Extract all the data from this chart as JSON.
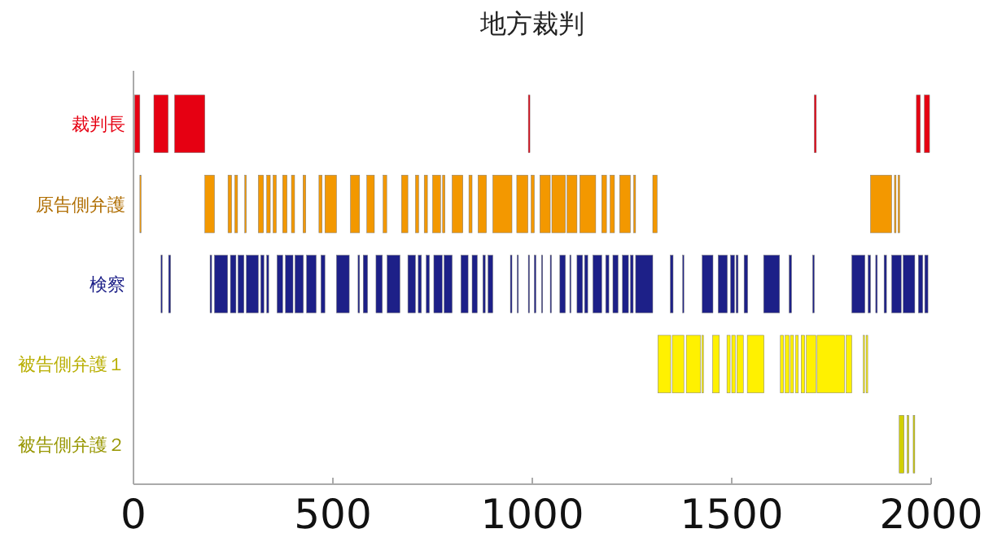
{
  "chart_data": {
    "type": "bar",
    "orientation": "horizontal",
    "title": "地方裁判",
    "categories": [
      "裁判長",
      "原告側弁護",
      "検察",
      "被告側弁護１",
      "被告側弁護２"
    ],
    "xlim": [
      0,
      2000
    ],
    "xticks": [
      0,
      500,
      1000,
      1500,
      2000
    ],
    "series": [
      {
        "colors": [
          "#e60012",
          "#f39800",
          "#1d2088",
          "#fff100",
          "#d2d000"
        ],
        "base": [
          3,
          16,
          69,
          1315,
          1920
        ],
        "values": [
          13,
          3,
          3,
          32,
          12
        ]
      },
      {
        "colors": [
          "#e60012",
          "#f39800",
          "#1d2088",
          "#fff100",
          "#d2d000"
        ],
        "base": [
          51,
          179,
          88,
          1351,
          1940
        ],
        "values": [
          36,
          24,
          5,
          29,
          4
        ]
      },
      {
        "colors": [
          "#e60012",
          "#f39800",
          "#1d2088",
          "#fff100",
          "#d2d000"
        ],
        "base": [
          103,
          237,
          192,
          1386,
          1955
        ],
        "values": [
          76,
          9,
          4,
          36,
          4
        ]
      },
      {
        "colors": [
          "#e60012",
          "#f39800",
          "#1d2088",
          "#fff100",
          null
        ],
        "base": [
          990,
          254,
          203,
          1425,
          null
        ],
        "values": [
          4,
          7,
          33,
          4,
          null
        ]
      },
      {
        "colors": [
          "#e60012",
          "#f39800",
          "#1d2088",
          "#fff100",
          null
        ],
        "base": [
          1707,
          279,
          243,
          1452,
          null
        ],
        "values": [
          5,
          4,
          14,
          17,
          null
        ]
      },
      {
        "colors": [
          "#e60012",
          "#f39800",
          "#1d2088",
          "#fff100",
          null
        ],
        "base": [
          1963,
          313,
          262,
          1488,
          null
        ],
        "values": [
          10,
          13,
          15,
          8,
          null
        ]
      },
      {
        "colors": [
          "#e60012",
          "#f39800",
          "#1d2088",
          "#fff100",
          null
        ],
        "base": [
          1983,
          334,
          283,
          1500,
          null
        ],
        "values": [
          13,
          9,
          30,
          9,
          null
        ]
      },
      {
        "colors": [
          null,
          "#f39800",
          "#1d2088",
          "#fff100",
          null
        ],
        "base": [
          null,
          350,
          319,
          1513,
          null
        ],
        "values": [
          null,
          8,
          8,
          16,
          null
        ]
      },
      {
        "colors": [
          null,
          "#f39800",
          "#1d2088",
          "#fff100",
          null
        ],
        "base": [
          null,
          374,
          334,
          1539,
          null
        ],
        "values": [
          null,
          11,
          5,
          42,
          null
        ]
      },
      {
        "colors": [
          null,
          "#f39800",
          "#1d2088",
          "#fff100",
          null
        ],
        "base": [
          null,
          396,
          360,
          1622,
          null
        ],
        "values": [
          null,
          8,
          14,
          8,
          null
        ]
      },
      {
        "colors": [
          null,
          "#f39800",
          "#1d2088",
          "#fff100",
          null
        ],
        "base": [
          null,
          425,
          381,
          1634,
          null
        ],
        "values": [
          null,
          7,
          19,
          10,
          null
        ]
      },
      {
        "colors": [
          null,
          "#f39800",
          "#1d2088",
          "#fff100",
          null
        ],
        "base": [
          null,
          465,
          405,
          1647,
          null
        ],
        "values": [
          null,
          8,
          21,
          8,
          null
        ]
      },
      {
        "colors": [
          null,
          "#f39800",
          "#1d2088",
          "#fff100",
          null
        ],
        "base": [
          null,
          480,
          434,
          1660,
          null
        ],
        "values": [
          null,
          29,
          24,
          7,
          null
        ]
      },
      {
        "colors": [
          null,
          "#f39800",
          "#1d2088",
          "#fff100",
          null
        ],
        "base": [
          null,
          544,
          470,
          1674,
          null
        ],
        "values": [
          null,
          23,
          10,
          9,
          null
        ]
      },
      {
        "colors": [
          null,
          "#f39800",
          "#1d2088",
          "#fff100",
          null
        ],
        "base": [
          null,
          585,
          509,
          1687,
          null
        ],
        "values": [
          null,
          19,
          32,
          24,
          null
        ]
      },
      {
        "colors": [
          null,
          "#f39800",
          "#1d2088",
          "#fff100",
          null
        ],
        "base": [
          null,
          626,
          563,
          1714,
          null
        ],
        "values": [
          null,
          9,
          4,
          69,
          null
        ]
      },
      {
        "colors": [
          null,
          "#f39800",
          "#1d2088",
          "#fff100",
          null
        ],
        "base": [
          null,
          672,
          576,
          1787,
          null
        ],
        "values": [
          null,
          16,
          11,
          14,
          null
        ]
      },
      {
        "colors": [
          null,
          "#f39800",
          "#1d2088",
          "#fff100",
          null
        ],
        "base": [
          null,
          707,
          608,
          1830,
          null
        ],
        "values": [
          null,
          8,
          16,
          3,
          null
        ]
      },
      {
        "colors": [
          null,
          "#f39800",
          "#1d2088",
          "#fff100",
          null
        ],
        "base": [
          null,
          729,
          636,
          1837,
          null
        ],
        "values": [
          null,
          8,
          32,
          4,
          null
        ]
      },
      {
        "colors": [
          null,
          "#f39800",
          "#1d2088",
          null,
          null
        ],
        "base": [
          null,
          750,
          688,
          null,
          null
        ],
        "values": [
          null,
          20,
          19,
          null,
          null
        ]
      },
      {
        "colors": [
          null,
          "#f39800",
          "#1d2088",
          null,
          null
        ],
        "base": [
          null,
          775,
          714,
          null,
          null
        ],
        "values": [
          null,
          6,
          8,
          null,
          null
        ]
      },
      {
        "colors": [
          null,
          "#f39800",
          "#1d2088",
          null,
          null
        ],
        "base": [
          null,
          799,
          734,
          null,
          null
        ],
        "values": [
          null,
          27,
          8,
          null,
          null
        ]
      },
      {
        "colors": [
          null,
          "#f39800",
          "#1d2088",
          null,
          null
        ],
        "base": [
          null,
          841,
          753,
          null,
          null
        ],
        "values": [
          null,
          8,
          21,
          null,
          null
        ]
      },
      {
        "colors": [
          null,
          "#f39800",
          "#1d2088",
          null,
          null
        ],
        "base": [
          null,
          864,
          779,
          null,
          null
        ],
        "values": [
          null,
          21,
          20,
          null,
          null
        ]
      },
      {
        "colors": [
          null,
          "#f39800",
          "#1d2088",
          null,
          null
        ],
        "base": [
          null,
          901,
          821,
          null,
          null
        ],
        "values": [
          null,
          48,
          18,
          null,
          null
        ]
      },
      {
        "colors": [
          null,
          "#f39800",
          "#1d2088",
          null,
          null
        ],
        "base": [
          null,
          961,
          849,
          null,
          null
        ],
        "values": [
          null,
          28,
          13,
          null,
          null
        ]
      },
      {
        "colors": [
          null,
          "#f39800",
          "#1d2088",
          null,
          null
        ],
        "base": [
          null,
          997,
          876,
          null,
          null
        ],
        "values": [
          null,
          8,
          6,
          null,
          null
        ]
      },
      {
        "colors": [
          null,
          "#f39800",
          "#1d2088",
          null,
          null
        ],
        "base": [
          null,
          1019,
          889,
          null,
          null
        ],
        "values": [
          null,
          26,
          12,
          null,
          null
        ]
      },
      {
        "colors": [
          null,
          "#f39800",
          "#1d2088",
          null,
          null
        ],
        "base": [
          null,
          1049,
          945,
          null,
          null
        ],
        "values": [
          null,
          34,
          4,
          null,
          null
        ]
      },
      {
        "colors": [
          null,
          "#f39800",
          "#1d2088",
          null,
          null
        ],
        "base": [
          null,
          1087,
          962,
          null,
          null
        ],
        "values": [
          null,
          25,
          3,
          null,
          null
        ]
      },
      {
        "colors": [
          null,
          "#f39800",
          "#1d2088",
          null,
          null
        ],
        "base": [
          null,
          1119,
          990,
          null,
          null
        ],
        "values": [
          null,
          40,
          3,
          null,
          null
        ]
      },
      {
        "colors": [
          null,
          "#f39800",
          "#1d2088",
          null,
          null
        ],
        "base": [
          null,
          1174,
          1005,
          null,
          null
        ],
        "values": [
          null,
          12,
          4,
          null,
          null
        ]
      },
      {
        "colors": [
          null,
          "#f39800",
          "#1d2088",
          null,
          null
        ],
        "base": [
          null,
          1195,
          1023,
          null,
          null
        ],
        "values": [
          null,
          11,
          3,
          null,
          null
        ]
      },
      {
        "colors": [
          null,
          "#f39800",
          "#1d2088",
          null,
          null
        ],
        "base": [
          null,
          1219,
          1045,
          null,
          null
        ],
        "values": [
          null,
          27,
          3,
          null,
          null
        ]
      },
      {
        "colors": [
          null,
          "#f39800",
          "#1d2088",
          null,
          null
        ],
        "base": [
          null,
          1254,
          1069,
          null,
          null
        ],
        "values": [
          null,
          5,
          14,
          null,
          null
        ]
      },
      {
        "colors": [
          null,
          "#f39800",
          "#1d2088",
          null,
          null
        ],
        "base": [
          null,
          1302,
          1094,
          null,
          null
        ],
        "values": [
          null,
          11,
          3,
          null,
          null
        ]
      },
      {
        "colors": [
          null,
          "#f39800",
          "#1d2088",
          null,
          null
        ],
        "base": [
          null,
          1848,
          1112,
          null,
          null
        ],
        "values": [
          null,
          53,
          14,
          null,
          null
        ]
      },
      {
        "colors": [
          null,
          "#f39800",
          "#1d2088",
          null,
          null
        ],
        "base": [
          null,
          1908,
          1131,
          null,
          null
        ],
        "values": [
          null,
          4,
          8,
          null,
          null
        ]
      },
      {
        "colors": [
          null,
          "#f39800",
          "#1d2088",
          null,
          null
        ],
        "base": [
          null,
          1917,
          1152,
          null,
          null
        ],
        "values": [
          null,
          4,
          22,
          null,
          null
        ]
      },
      {
        "color": "#1d2088",
        "base": [
          null,
          null,
          1184,
          null,
          null
        ],
        "values": [
          null,
          null,
          8,
          null,
          null
        ]
      },
      {
        "color": "#1d2088",
        "base": [
          null,
          null,
          1202,
          null,
          null
        ],
        "values": [
          null,
          null,
          13,
          null,
          null
        ]
      },
      {
        "color": "#1d2088",
        "base": [
          null,
          null,
          1226,
          null,
          null
        ],
        "values": [
          null,
          null,
          15,
          null,
          null
        ]
      },
      {
        "color": "#1d2088",
        "base": [
          null,
          null,
          1246,
          null,
          null
        ],
        "values": [
          null,
          null,
          7,
          null,
          null
        ]
      },
      {
        "color": "#1d2088",
        "base": [
          null,
          null,
          1259,
          null,
          null
        ],
        "values": [
          null,
          null,
          43,
          null,
          null
        ]
      },
      {
        "color": "#1d2088",
        "base": [
          null,
          null,
          1346,
          null,
          null
        ],
        "values": [
          null,
          null,
          7,
          null,
          null
        ]
      },
      {
        "color": "#1d2088",
        "base": [
          null,
          null,
          1377,
          null,
          null
        ],
        "values": [
          null,
          null,
          3,
          null,
          null
        ]
      },
      {
        "color": "#1d2088",
        "base": [
          null,
          null,
          1426,
          null,
          null
        ],
        "values": [
          null,
          null,
          27,
          null,
          null
        ]
      },
      {
        "color": "#1d2088",
        "base": [
          null,
          null,
          1466,
          null,
          null
        ],
        "values": [
          null,
          null,
          23,
          null,
          null
        ]
      },
      {
        "color": "#1d2088",
        "base": [
          null,
          null,
          1497,
          null,
          null
        ],
        "values": [
          null,
          null,
          10,
          null,
          null
        ]
      },
      {
        "color": "#1d2088",
        "base": [
          null,
          null,
          1511,
          null,
          null
        ],
        "values": [
          null,
          null,
          5,
          null,
          null
        ]
      },
      {
        "color": "#1d2088",
        "base": [
          null,
          null,
          1531,
          null,
          null
        ],
        "values": [
          null,
          null,
          9,
          null,
          null
        ]
      },
      {
        "color": "#1d2088",
        "base": [
          null,
          null,
          1580,
          null,
          null
        ],
        "values": [
          null,
          null,
          40,
          null,
          null
        ]
      },
      {
        "color": "#1d2088",
        "base": [
          null,
          null,
          1644,
          null,
          null
        ],
        "values": [
          null,
          null,
          6,
          null,
          null
        ]
      },
      {
        "color": "#1d2088",
        "base": [
          null,
          null,
          1703,
          null,
          null
        ],
        "values": [
          null,
          null,
          4,
          null,
          null
        ]
      },
      {
        "color": "#1d2088",
        "base": [
          null,
          null,
          1801,
          null,
          null
        ],
        "values": [
          null,
          null,
          33,
          null,
          null
        ]
      },
      {
        "color": "#1d2088",
        "base": [
          null,
          null,
          1842,
          null,
          null
        ],
        "values": [
          null,
          null,
          6,
          null,
          null
        ]
      },
      {
        "color": "#1d2088",
        "base": [
          null,
          null,
          1861,
          null,
          null
        ],
        "values": [
          null,
          null,
          4,
          null,
          null
        ]
      },
      {
        "color": "#1d2088",
        "base": [
          null,
          null,
          1882,
          null,
          null
        ],
        "values": [
          null,
          null,
          6,
          null,
          null
        ]
      },
      {
        "color": "#1d2088",
        "base": [
          null,
          null,
          1901,
          null,
          null
        ],
        "values": [
          null,
          null,
          24,
          null,
          null
        ]
      },
      {
        "color": "#1d2088",
        "base": [
          null,
          null,
          1930,
          null,
          null
        ],
        "values": [
          null,
          null,
          29,
          null,
          null
        ]
      },
      {
        "color": "#1d2088",
        "base": [
          null,
          null,
          1968,
          null,
          null
        ],
        "values": [
          null,
          null,
          11,
          null,
          null
        ]
      },
      {
        "color": "#1d2088",
        "base": [
          null,
          null,
          1984,
          null,
          null
        ],
        "values": [
          null,
          null,
          8,
          null,
          null
        ]
      }
    ]
  }
}
